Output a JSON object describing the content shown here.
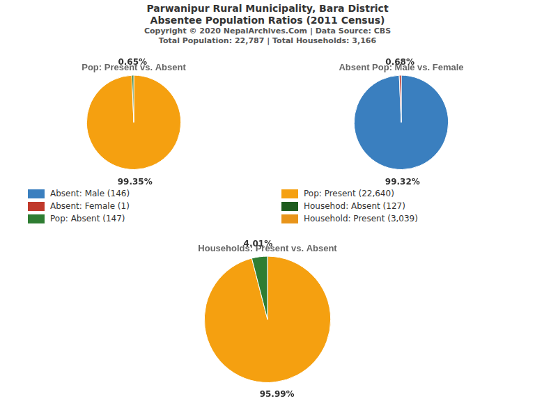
{
  "title": [
    "Parwanipur Rural Municipality, Bara District",
    "Absentee Population Ratios (2011 Census)"
  ],
  "subtitle": [
    "Copyright © 2020 NepalArchives.Com | Data Source: CBS",
    "Total Population: 22,787 | Total Households: 3,166"
  ],
  "series": [
    {
      "name": "Absent: Male (146)",
      "color": "#3a7fbf"
    },
    {
      "name": "Absent: Female (1)",
      "color": "#c0392b"
    },
    {
      "name": "Pop: Absent (147)",
      "color": "#2e7d32"
    },
    {
      "name": "Pop: Present (22,640)",
      "color": "#f5a010"
    },
    {
      "name": "Househod: Absent (127)",
      "color": "#1e5c1e"
    },
    {
      "name": "Household: Present (3,039)",
      "color": "#e8941a"
    }
  ],
  "chart_data": [
    {
      "type": "pie",
      "title": "Pop: Present vs. Absent",
      "values": [
        99.35,
        0.65
      ],
      "value_labels": [
        "99.35%",
        "0.65%"
      ],
      "colors": [
        "#f5a010",
        "#2e7d32"
      ],
      "data_labels": true
    },
    {
      "type": "pie",
      "title": "Absent Pop: Male vs. Female",
      "values": [
        99.32,
        0.68
      ],
      "value_labels": [
        "99.32%",
        "0.68%"
      ],
      "colors": [
        "#3a7fbf",
        "#c0392b"
      ],
      "data_labels": true
    },
    {
      "type": "pie",
      "title": "Households: Present vs. Absent",
      "values": [
        95.99,
        4.01
      ],
      "value_labels": [
        "95.99%",
        "4.01%"
      ],
      "colors": [
        "#f5a010",
        "#2e7d32"
      ],
      "data_labels": true
    }
  ]
}
